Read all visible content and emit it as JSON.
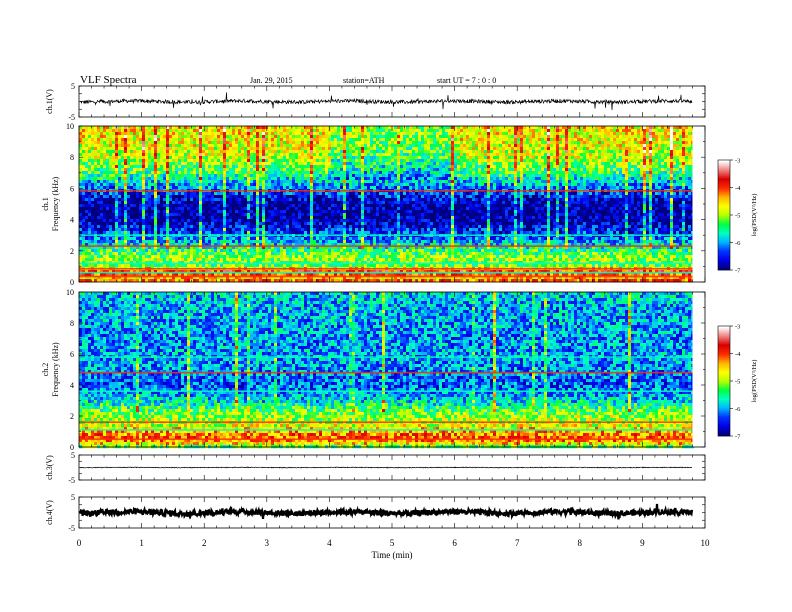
{
  "header": {
    "title": "VLF  Spectra",
    "date": "Jan. 29, 2015",
    "station": "station=ATH",
    "start": "start  UT  =   7  : 0  : 0"
  },
  "colors": {
    "spectrogram_ramp": [
      "#00007a",
      "#0000e6",
      "#0033ff",
      "#00b4ff",
      "#00ffc0",
      "#00ff40",
      "#b4ff00",
      "#ffff00",
      "#ffb400",
      "#ff2a00",
      "#d60000",
      "#f08080",
      "#ffffff"
    ]
  },
  "chart_data": [
    {
      "type": "line",
      "name": "ch1-waveform-panel",
      "ylabel": "ch.1(V)",
      "yticks": [
        "5",
        "-5"
      ],
      "ylim": [
        -5,
        5
      ],
      "level": 0,
      "noise": 0.6
    },
    {
      "type": "heatmap",
      "name": "ch1-spectrogram",
      "ylabel_line1": "ch.1",
      "ylabel_line2": "Frequency  (kHz)",
      "yticks": [
        "0",
        "2",
        "4",
        "6",
        "8",
        "10"
      ],
      "ylim": [
        0,
        10
      ],
      "xlim": [
        0,
        10
      ],
      "data_end_min": 9.8,
      "colorbar": {
        "label": "log(PSD(V²/Hz)",
        "ticks": [
          "-3",
          "-4",
          "-5",
          "-6",
          "-7"
        ],
        "range": [
          -7,
          -3
        ]
      },
      "profile_khz": [
        0,
        0.3,
        0.6,
        1.0,
        1.5,
        2.0,
        2.5,
        3.0,
        4.0,
        5.0,
        6.0,
        7.0,
        8.0,
        9.0,
        10.0
      ],
      "profile_log": [
        -3.8,
        -4.6,
        -3.6,
        -5.2,
        -5.0,
        -5.4,
        -5.9,
        -6.3,
        -6.9,
        -6.9,
        -6.2,
        -5.4,
        -4.9,
        -4.7,
        -4.6
      ],
      "bands_khz": [
        0.35,
        0.6,
        0.85,
        1.2,
        2.3,
        3.0,
        5.85
      ]
    },
    {
      "type": "heatmap",
      "name": "ch2-spectrogram",
      "ylabel_line1": "ch.2",
      "ylabel_line2": "Frequency  (kHz)",
      "yticks": [
        "0",
        "2",
        "4",
        "6",
        "8",
        "10"
      ],
      "ylim": [
        0,
        10
      ],
      "xlim": [
        0,
        10
      ],
      "data_end_min": 9.8,
      "colorbar": {
        "label": "log(PSD(V²/Hz)",
        "ticks": [
          "-3",
          "-4",
          "-5",
          "-6",
          "-7"
        ],
        "range": [
          -7,
          -3
        ]
      },
      "profile_khz": [
        0,
        0.3,
        0.6,
        1.0,
        1.5,
        2.0,
        2.5,
        3.0,
        4.0,
        5.0,
        6.0,
        7.0,
        8.0,
        9.0,
        10.0
      ],
      "profile_log": [
        -5.4,
        -4.3,
        -4.1,
        -4.4,
        -4.9,
        -5.0,
        -5.4,
        -5.8,
        -6.3,
        -6.1,
        -6.0,
        -6.1,
        -6.0,
        -6.0,
        -5.8
      ],
      "bands_khz": [
        0.5,
        1.1,
        1.6,
        3.6,
        4.8,
        5.8
      ]
    },
    {
      "type": "line",
      "name": "ch3-waveform-panel",
      "ylabel": "ch.3(V)",
      "yticks": [
        "5",
        "-5"
      ],
      "ylim": [
        -5,
        5
      ],
      "level": 0,
      "noise": 0.15
    },
    {
      "type": "line",
      "name": "ch4-waveform-panel",
      "ylabel": "ch.4(V)",
      "yticks": [
        "5",
        "-5"
      ],
      "ylim": [
        -5,
        5
      ],
      "level": 0,
      "noise": 0.9
    }
  ],
  "xaxis": {
    "label": "Time  (min)",
    "ticks": [
      "0",
      "1",
      "2",
      "3",
      "4",
      "5",
      "6",
      "7",
      "8",
      "9",
      "10"
    ],
    "xlim": [
      0,
      10
    ]
  }
}
